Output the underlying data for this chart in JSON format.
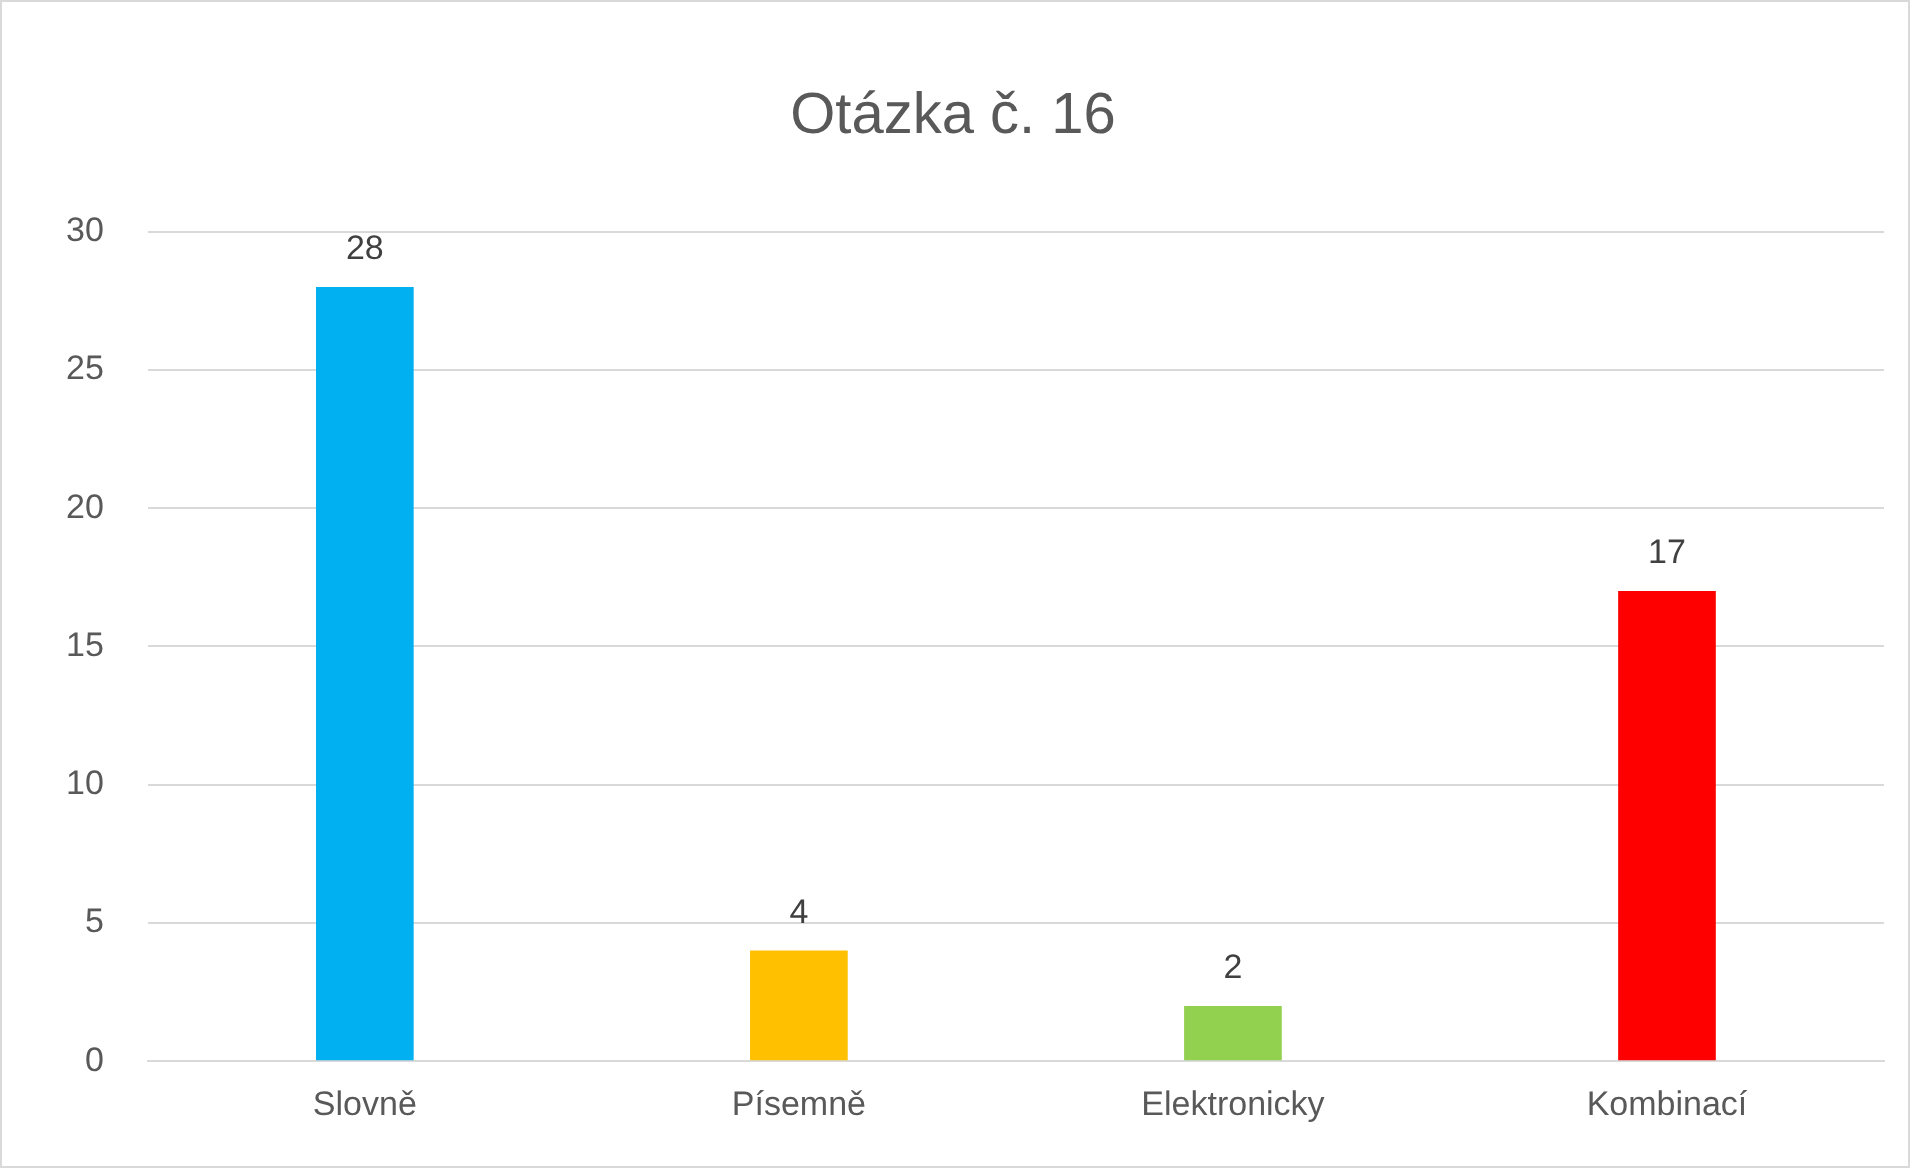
{
  "chart_data": {
    "type": "bar",
    "title": "Otázka č. 16",
    "categories": [
      "Slovně",
      "Písemně",
      "Elektronicky",
      "Kombinací"
    ],
    "values": [
      28,
      4,
      2,
      17
    ],
    "colors": [
      "#00b0f0",
      "#ffc000",
      "#92d050",
      "#ff0000"
    ],
    "ylim": [
      0,
      30
    ],
    "yticks": [
      0,
      5,
      10,
      15,
      20,
      25,
      30
    ],
    "grid": "y",
    "data_labels": true,
    "legend": false
  }
}
